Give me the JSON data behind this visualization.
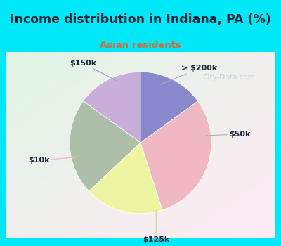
{
  "title": "Income distribution in Indiana, PA (%)",
  "subtitle": "Asian residents",
  "title_color": "#1a2a3a",
  "subtitle_color": "#c87040",
  "background_cyan": "#00e8f8",
  "inner_box_color": "#e8f5ee",
  "slices": [
    {
      "label": "> $200k",
      "value": 15,
      "color": "#c8aed8"
    },
    {
      "label": "$50k",
      "value": 22,
      "color": "#adbfa8"
    },
    {
      "label": "$125k",
      "value": 18,
      "color": "#eef5a0"
    },
    {
      "label": "$10k",
      "value": 30,
      "color": "#f0b8c0"
    },
    {
      "label": "$150k",
      "value": 15,
      "color": "#8888cc"
    }
  ],
  "watermark": "City-Data.com",
  "figsize": [
    4.0,
    3.5
  ],
  "dpi": 100
}
